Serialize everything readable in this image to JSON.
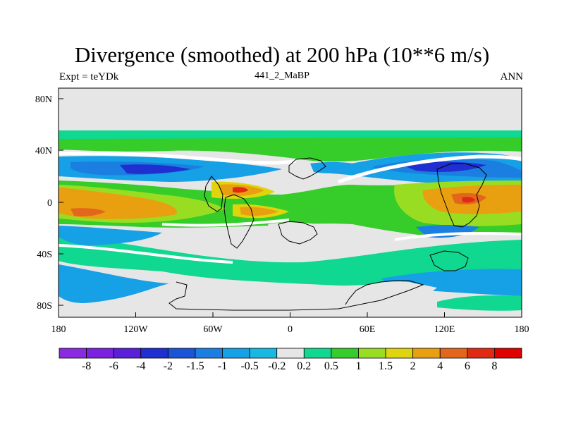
{
  "title": "Divergence (smoothed) at 200 hPa (10**6 m/s)",
  "left_string": "Expt = teYDk",
  "center_string": "441_2_MaBP",
  "right_string": "ANN",
  "lat_ticks": [
    "80N",
    "40N",
    "0",
    "40S",
    "80S"
  ],
  "lon_ticks": [
    "180",
    "120W",
    "60W",
    "0",
    "60E",
    "120E",
    "180"
  ],
  "colorbar": {
    "colors": [
      "#8a2be2",
      "#7b22e0",
      "#5a1fd8",
      "#1f2fd0",
      "#1a55d8",
      "#1a7fe0",
      "#16a0e6",
      "#17b9e3",
      "#e6e6e6",
      "#10d890",
      "#36cc2a",
      "#99dd22",
      "#e0d40e",
      "#e8a010",
      "#e2661c",
      "#e02a14",
      "#e00000"
    ],
    "labels": [
      "-8",
      "-6",
      "-4",
      "-2",
      "-1.5",
      "-1",
      "-0.5",
      "-0.2",
      "0.2",
      "0.5",
      "1",
      "1.5",
      "2",
      "4",
      "6",
      "8"
    ]
  },
  "palette": {
    "background": "#e6e6e6",
    "green": "#36cc2a",
    "teal": "#10d890",
    "lightgreen": "#99dd22",
    "yellow": "#e0d40e",
    "orange": "#e8a010",
    "darkorange": "#e2661c",
    "red": "#e02a14",
    "cyan": "#17b9e3",
    "lightblue": "#16a0e6",
    "blue": "#1a7fe0",
    "darkblue": "#1f2fd0"
  }
}
